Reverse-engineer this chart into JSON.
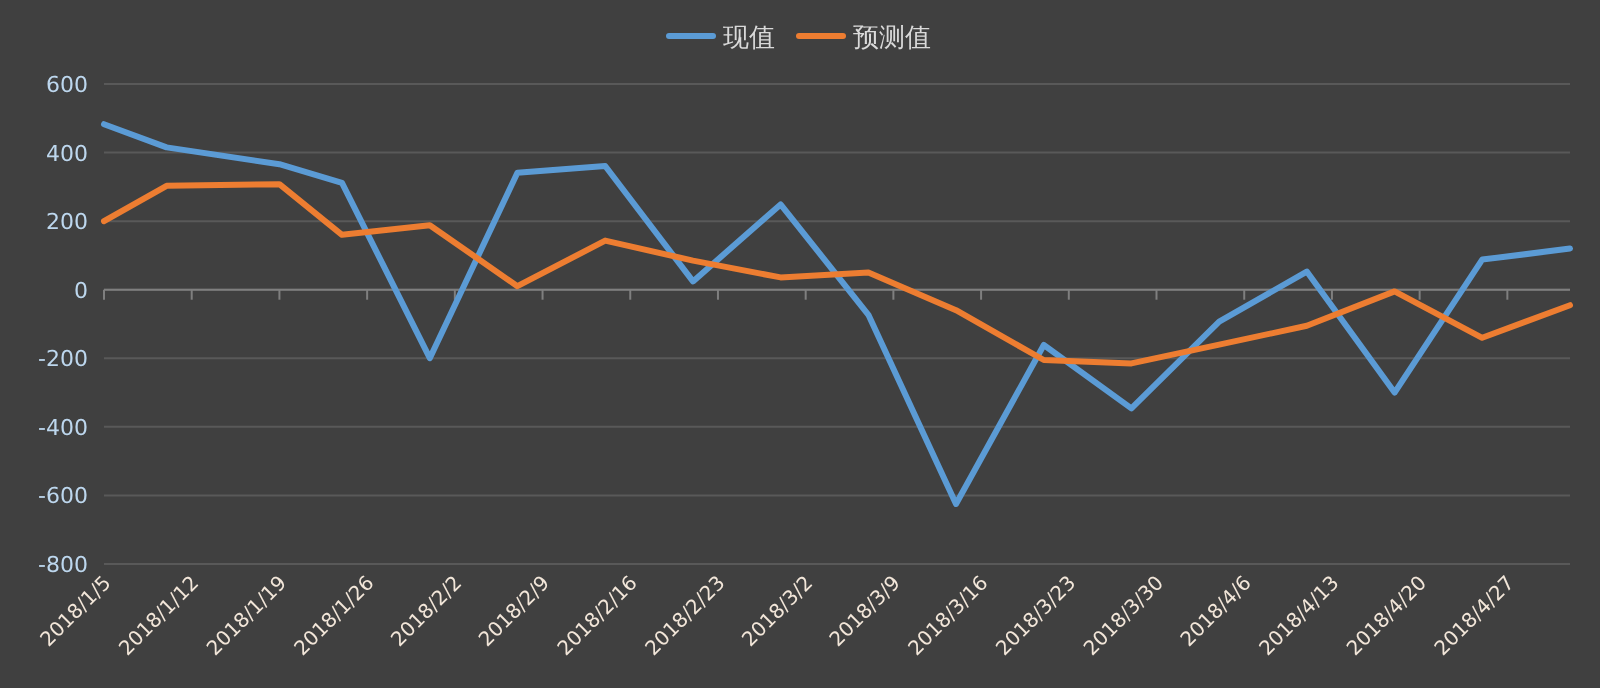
{
  "chart_data": {
    "type": "line",
    "legend": "top",
    "grid": "y",
    "marker": "none",
    "line_style": "solid",
    "x": [
      "2018-01-05",
      "2018-01-10",
      "2018-01-19",
      "2018-01-24",
      "2018-01-31",
      "2018-02-07",
      "2018-02-14",
      "2018-02-21",
      "2018-02-28",
      "2018-03-07",
      "2018-03-14",
      "2018-03-21",
      "2018-03-28",
      "2018-04-04",
      "2018-04-11",
      "2018-04-18",
      "2018-04-25",
      "2018-05-02"
    ],
    "series": [
      {
        "name": "现值",
        "color": "#5b9bd5",
        "values": [
          483,
          415,
          366,
          312,
          -200,
          341,
          361,
          24,
          249,
          -73,
          -625,
          -161,
          -346,
          -93,
          53,
          -300,
          88,
          120
        ]
      },
      {
        "name": "预测值",
        "color": "#ed7d31",
        "values": [
          200,
          303,
          308,
          160,
          188,
          10,
          143,
          85,
          36,
          50,
          -60,
          -205,
          -215,
          -160,
          -105,
          -5,
          -140,
          -45
        ]
      }
    ],
    "xlim": [
      "2018-01-05",
      "2018-05-02"
    ],
    "xticks": [
      {
        "value": "2018-01-05",
        "label": "2018/1/5"
      },
      {
        "value": "2018-01-12",
        "label": "2018/1/12"
      },
      {
        "value": "2018-01-19",
        "label": "2018/1/19"
      },
      {
        "value": "2018-01-26",
        "label": "2018/1/26"
      },
      {
        "value": "2018-02-02",
        "label": "2018/2/2"
      },
      {
        "value": "2018-02-09",
        "label": "2018/2/9"
      },
      {
        "value": "2018-02-16",
        "label": "2018/2/16"
      },
      {
        "value": "2018-02-23",
        "label": "2018/2/23"
      },
      {
        "value": "2018-03-02",
        "label": "2018/3/2"
      },
      {
        "value": "2018-03-09",
        "label": "2018/3/9"
      },
      {
        "value": "2018-03-16",
        "label": "2018/3/16"
      },
      {
        "value": "2018-03-23",
        "label": "2018/3/23"
      },
      {
        "value": "2018-03-30",
        "label": "2018/3/30"
      },
      {
        "value": "2018-04-06",
        "label": "2018/4/6"
      },
      {
        "value": "2018-04-13",
        "label": "2018/4/13"
      },
      {
        "value": "2018-04-20",
        "label": "2018/4/20"
      },
      {
        "value": "2018-04-27",
        "label": "2018/4/27"
      }
    ],
    "ylim": [
      -800,
      600
    ],
    "yticks": [
      -800,
      -600,
      -400,
      -200,
      0,
      200,
      400,
      600
    ]
  }
}
